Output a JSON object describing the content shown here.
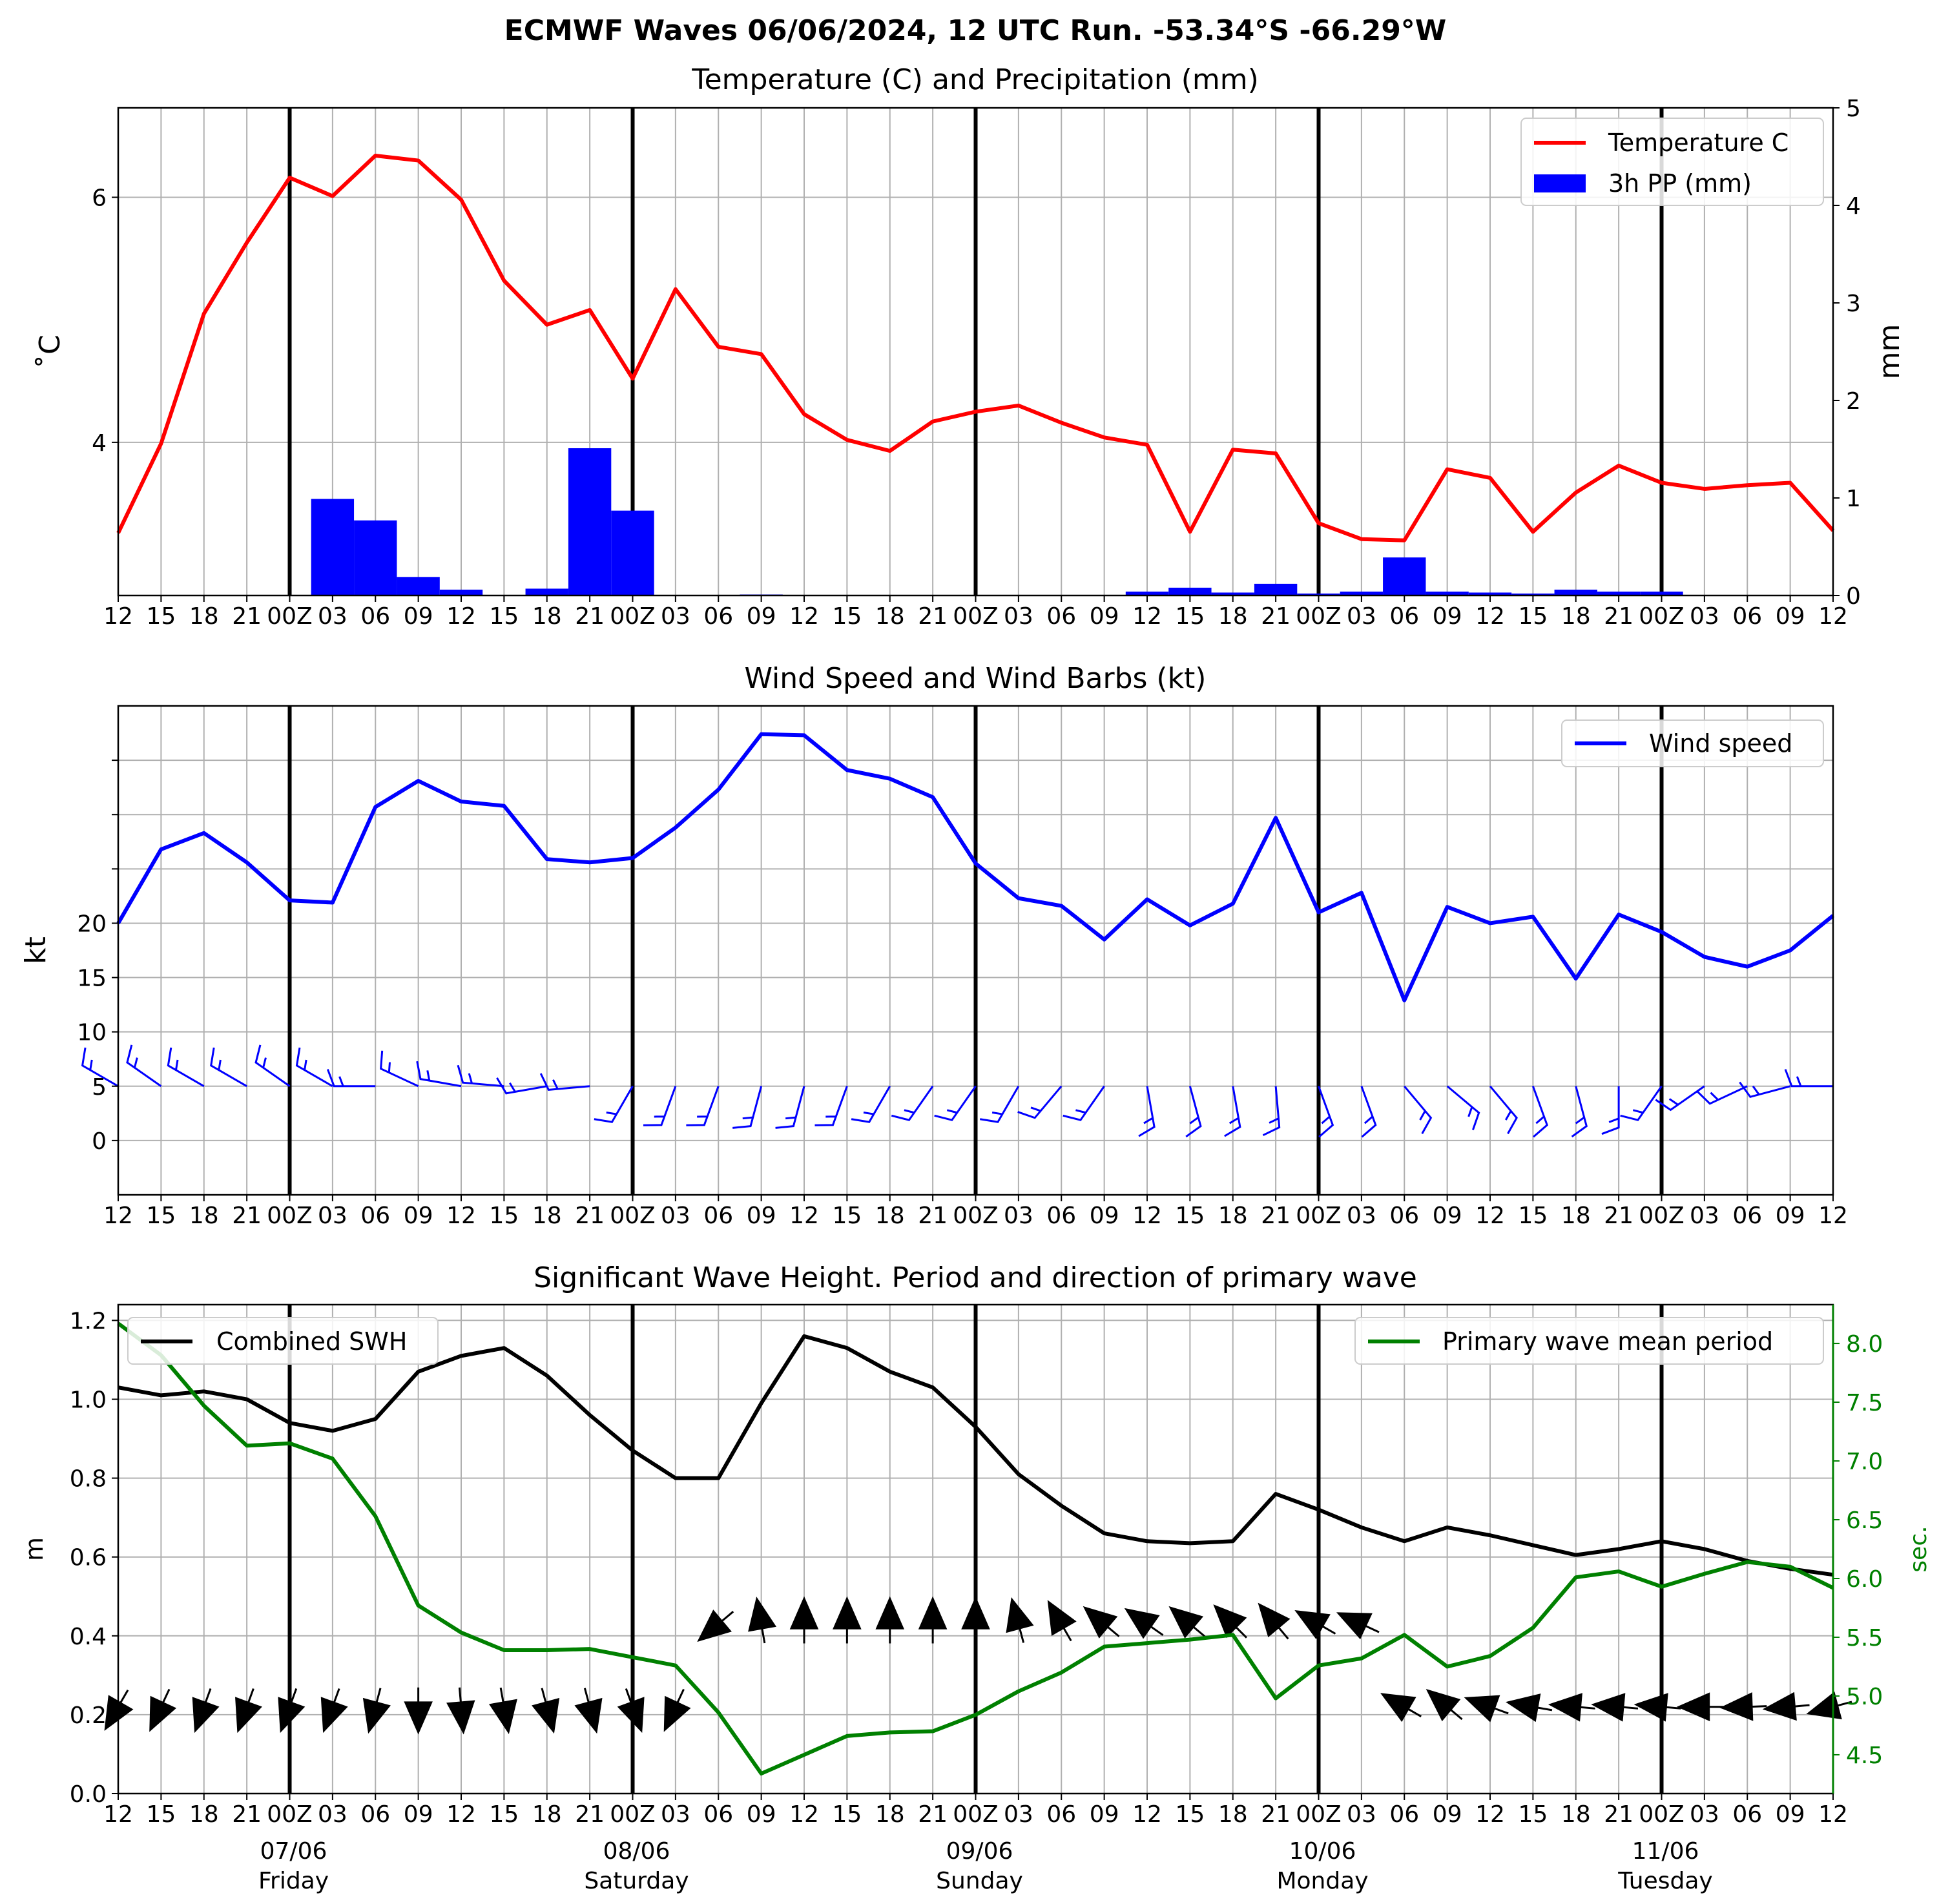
{
  "main_title": "ECMWF Waves 06/06/2024, 12 UTC Run. -53.34°S -66.29°W",
  "time_tick_labels": [
    "12",
    "15",
    "18",
    "21",
    "00Z",
    "03",
    "06",
    "09",
    "12",
    "15",
    "18",
    "21",
    "00Z",
    "03",
    "06",
    "09",
    "12",
    "15",
    "18",
    "21",
    "00Z",
    "03",
    "06",
    "09",
    "12",
    "15",
    "18",
    "21",
    "00Z",
    "03",
    "06",
    "09",
    "12",
    "15",
    "18",
    "21",
    "00Z",
    "03",
    "06",
    "09",
    "12"
  ],
  "day_labels": [
    {
      "date": "07/06",
      "weekday": "Friday",
      "index": 4
    },
    {
      "date": "08/06",
      "weekday": "Saturday",
      "index": 12
    },
    {
      "date": "09/06",
      "weekday": "Sunday",
      "index": 20
    },
    {
      "date": "10/06",
      "weekday": "Monday",
      "index": 28
    },
    {
      "date": "11/06",
      "weekday": "Tuesday",
      "index": 36
    }
  ],
  "colors": {
    "temperature": "#ff0000",
    "precip": "#0000ff",
    "wind": "#0000ff",
    "swh": "#000000",
    "period": "#008000",
    "grid": "#b0b0b0"
  },
  "chart_data": [
    {
      "type": "line",
      "title": "Temperature (C) and Precipitation (mm)",
      "ylabel": "$^\\circ$C",
      "ylabel_display": "˚C",
      "y2label": "mm",
      "ylim": [
        2.75,
        6.73
      ],
      "yticks": [
        4,
        6
      ],
      "y2lim": [
        0,
        5
      ],
      "y2ticks": [
        0,
        1,
        2,
        3,
        4,
        5
      ],
      "legend": [
        "Temperature C",
        "3h PP (mm)"
      ],
      "legend_position": "upper right",
      "grid": true,
      "x_step_hours": 3,
      "series": [
        {
          "name": "Temperature C",
          "kind": "line",
          "axis": "left",
          "values": [
            3.26,
            3.99,
            5.05,
            5.63,
            6.16,
            6.01,
            6.34,
            6.3,
            5.98,
            5.32,
            4.96,
            5.08,
            4.52,
            5.25,
            4.78,
            4.72,
            4.23,
            4.02,
            3.93,
            4.17,
            4.25,
            4.3,
            4.16,
            4.04,
            3.98,
            3.27,
            3.94,
            3.91,
            3.34,
            3.21,
            3.2,
            3.78,
            3.71,
            3.27,
            3.59,
            3.81,
            3.67,
            3.62,
            3.65,
            3.67,
            3.28
          ]
        },
        {
          "name": "3h PP (mm)",
          "kind": "bar",
          "axis": "right",
          "values": [
            0,
            0,
            0,
            0,
            0,
            0.99,
            0.77,
            0.19,
            0.06,
            0,
            0.07,
            1.51,
            0.87,
            0,
            0,
            0.01,
            0,
            0,
            0,
            0,
            0,
            0,
            0,
            0,
            0.04,
            0.08,
            0.03,
            0.12,
            0.02,
            0.04,
            0.39,
            0.04,
            0.03,
            0.02,
            0.06,
            0.04,
            0.04,
            0,
            0,
            0,
            0
          ]
        }
      ]
    },
    {
      "type": "line",
      "title": "Wind Speed and Wind Barbs (kt)",
      "ylabel": "kt",
      "ylim": [
        -5,
        40
      ],
      "yticks_labeled": [
        0,
        5,
        10,
        15,
        20
      ],
      "yticks_unlabeled": [
        25,
        30,
        35
      ],
      "legend": [
        "Wind speed"
      ],
      "legend_position": "upper right",
      "grid": true,
      "series": [
        {
          "name": "Wind speed",
          "values": [
            20.0,
            26.8,
            28.3,
            25.6,
            22.1,
            21.9,
            30.7,
            33.1,
            31.2,
            30.8,
            25.9,
            25.6,
            26.0,
            28.8,
            32.3,
            37.4,
            37.3,
            34.1,
            33.3,
            31.6,
            25.5,
            22.3,
            21.6,
            18.5,
            22.2,
            19.8,
            21.8,
            29.7,
            21.0,
            22.8,
            12.9,
            21.5,
            20.0,
            20.6,
            14.9,
            20.8,
            19.2,
            16.9,
            16.0,
            17.5,
            20.7
          ]
        }
      ],
      "barbs_baseline": 5,
      "barbs_direction_deg": [
        300,
        305,
        300,
        300,
        305,
        300,
        270,
        295,
        280,
        275,
        260,
        265,
        210,
        200,
        200,
        195,
        195,
        200,
        210,
        215,
        215,
        210,
        220,
        215,
        170,
        165,
        170,
        175,
        160,
        160,
        140,
        130,
        140,
        160,
        165,
        180,
        215,
        235,
        245,
        255,
        270
      ]
    },
    {
      "type": "line",
      "title": "Significant Wave Height. Period and direction of primary wave",
      "ylabel": "m",
      "y2label": "sec.",
      "ylim": [
        0.0,
        1.24
      ],
      "yticks": [
        0.0,
        0.2,
        0.4,
        0.6,
        0.8,
        1.0,
        1.2
      ],
      "y2lim": [
        4.17,
        8.33
      ],
      "y2ticks": [
        4.5,
        5.0,
        5.5,
        6.0,
        6.5,
        7.0,
        7.5,
        8.0
      ],
      "legend": [
        "Combined SWH",
        "Primary wave mean period"
      ],
      "legend_positions": [
        "upper left",
        "upper right"
      ],
      "grid": true,
      "series": [
        {
          "name": "Combined SWH",
          "axis": "left",
          "values": [
            1.03,
            1.01,
            1.02,
            1.0,
            0.94,
            0.92,
            0.95,
            1.07,
            1.11,
            1.13,
            1.06,
            0.96,
            0.87,
            0.8,
            0.8,
            0.99,
            1.16,
            1.13,
            1.07,
            1.03,
            0.93,
            0.81,
            0.73,
            0.66,
            0.64,
            0.635,
            0.64,
            0.76,
            0.72,
            0.675,
            0.64,
            0.675,
            0.655,
            0.63,
            0.605,
            0.62,
            0.64,
            0.62,
            0.59,
            0.57,
            0.555
          ]
        },
        {
          "name": "Primary wave mean period",
          "axis": "right",
          "values": [
            8.17,
            7.9,
            7.47,
            7.13,
            7.15,
            7.02,
            6.53,
            5.77,
            5.54,
            5.39,
            5.39,
            5.4,
            5.33,
            5.26,
            4.86,
            4.34,
            4.5,
            4.66,
            4.69,
            4.7,
            4.84,
            5.04,
            5.2,
            5.42,
            5.45,
            5.48,
            5.52,
            4.98,
            5.26,
            5.32,
            5.52,
            5.25,
            5.34,
            5.58,
            6.01,
            6.06,
            5.93,
            6.04,
            6.14,
            6.1,
            5.92
          ]
        }
      ],
      "arrows_row_upper_m": 0.43,
      "arrows_row_lower_m": 0.22,
      "wave_arrow_direction_deg": [
        210,
        205,
        200,
        200,
        200,
        200,
        195,
        180,
        175,
        170,
        165,
        165,
        160,
        205,
        230,
        350,
        0,
        0,
        0,
        0,
        0,
        345,
        330,
        310,
        305,
        310,
        315,
        320,
        300,
        295,
        300,
        310,
        290,
        280,
        275,
        275,
        275,
        270,
        268,
        265,
        255
      ]
    }
  ]
}
